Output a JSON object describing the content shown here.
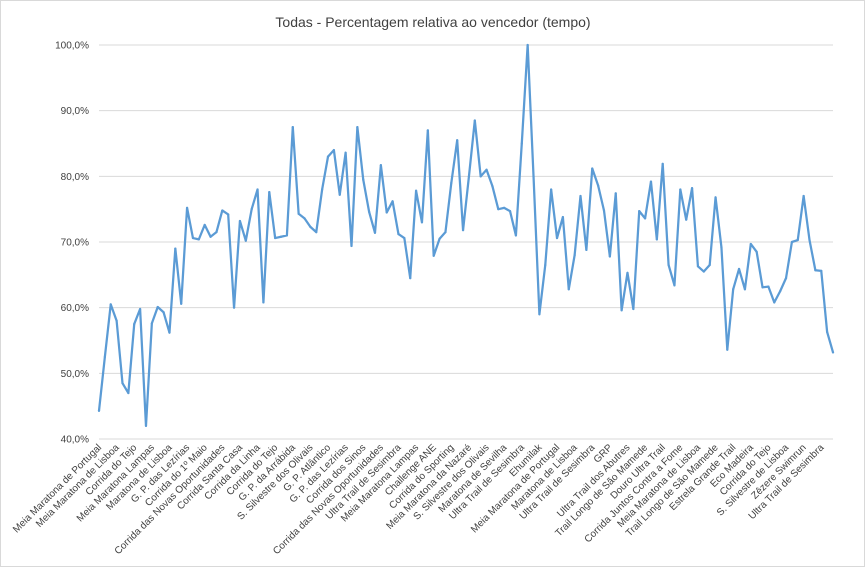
{
  "colors": {
    "series": "#5b9bd5",
    "grid": "#d9d9d9",
    "text": "#404040",
    "background": "#ffffff"
  },
  "chart_data": {
    "type": "line",
    "title": "Todas - Percentagem relativa ao vencedor (tempo)",
    "xlabel": "",
    "ylabel": "",
    "ylim": [
      40,
      100
    ],
    "yticks": [
      40,
      50,
      60,
      70,
      80,
      90,
      100
    ],
    "ytick_labels": [
      "40,0%",
      "50,0%",
      "60,0%",
      "70,0%",
      "80,0%",
      "90,0%",
      "100,0%"
    ],
    "grid": true,
    "legend": "none",
    "x_labels": [
      {
        "i": 0,
        "label": "Meia Maratona de Portugal"
      },
      {
        "i": 3,
        "label": "Meia Maratona de Lisboa"
      },
      {
        "i": 6,
        "label": "Corrida do Tejo"
      },
      {
        "i": 9,
        "label": "Meia Maratona Lampas"
      },
      {
        "i": 12,
        "label": "Maratona de Lisboa"
      },
      {
        "i": 15,
        "label": "G. P. das Lezírias"
      },
      {
        "i": 18,
        "label": "Corrida do 1º Maio"
      },
      {
        "i": 21,
        "label": "Corrida das Novas Oportunidades"
      },
      {
        "i": 24,
        "label": "Corrida Santa Casa"
      },
      {
        "i": 27,
        "label": "Corrida da Linha"
      },
      {
        "i": 30,
        "label": "Corrida do Tejo"
      },
      {
        "i": 33,
        "label": "G. P. da Arrábida"
      },
      {
        "i": 36,
        "label": "S. Silvestre dos Olivais"
      },
      {
        "i": 39,
        "label": "G. P. Atlântico"
      },
      {
        "i": 42,
        "label": "G. P. das Lezírias"
      },
      {
        "i": 45,
        "label": "Corrida dos Sinos"
      },
      {
        "i": 48,
        "label": "Corrida das Novas Oportunidades"
      },
      {
        "i": 51,
        "label": "Ultra Trail de Sesimbra"
      },
      {
        "i": 54,
        "label": "Meia Maratona Lampas"
      },
      {
        "i": 57,
        "label": "Challenge ANE"
      },
      {
        "i": 60,
        "label": "Corrida do Sporting"
      },
      {
        "i": 63,
        "label": "Meia Maratona da Nazaré"
      },
      {
        "i": 66,
        "label": "S. Silvestre dos Olivais"
      },
      {
        "i": 69,
        "label": "Maratona de Sevilha"
      },
      {
        "i": 72,
        "label": "Ultra Trail de Sesimbra"
      },
      {
        "i": 75,
        "label": "Ehumilak"
      },
      {
        "i": 78,
        "label": "Meia Maratona de Portugal"
      },
      {
        "i": 81,
        "label": "Maratona de Lisboa"
      },
      {
        "i": 84,
        "label": "Ultra Trail de Sesimbra"
      },
      {
        "i": 87,
        "label": "GRP"
      },
      {
        "i": 90,
        "label": "Ultra Trail dos Abutres"
      },
      {
        "i": 93,
        "label": "Trail Longo de São Mamede"
      },
      {
        "i": 96,
        "label": "Douro Ultra Trail"
      },
      {
        "i": 99,
        "label": "Corrida Juntos Contra a Fome"
      },
      {
        "i": 102,
        "label": "Meia Maratona de Lisboa"
      },
      {
        "i": 105,
        "label": "Trail Longo de São Mamede"
      },
      {
        "i": 108,
        "label": "Estrela Grande Trail"
      },
      {
        "i": 111,
        "label": "Eco Madeira"
      },
      {
        "i": 114,
        "label": "Corrida do Tejo"
      },
      {
        "i": 117,
        "label": "S. Silvestre de Lisboa"
      },
      {
        "i": 120,
        "label": "Zêzere Swimrun"
      },
      {
        "i": 123,
        "label": "Ultra Trail de Sesimbra"
      }
    ],
    "series": [
      {
        "name": "Percentagem relativa ao vencedor",
        "values": [
          44.3,
          52.5,
          60.5,
          58.0,
          48.5,
          47.0,
          57.5,
          59.8,
          42.0,
          57.6,
          60.1,
          59.3,
          56.2,
          69.0,
          60.6,
          75.2,
          70.6,
          70.4,
          72.6,
          70.8,
          71.5,
          74.8,
          74.2,
          60.0,
          73.2,
          70.2,
          75.0,
          78.0,
          60.8,
          77.6,
          70.6,
          70.8,
          71.0,
          87.5,
          74.3,
          73.6,
          72.3,
          71.5,
          78.0,
          83.0,
          84.0,
          77.2,
          83.6,
          69.4,
          87.5,
          79.5,
          74.6,
          71.4,
          81.7,
          74.5,
          76.2,
          71.2,
          70.6,
          64.5,
          77.8,
          73.0,
          87.0,
          67.9,
          70.5,
          71.5,
          79.0,
          85.5,
          71.8,
          80.0,
          88.5,
          80.0,
          81.0,
          78.5,
          75.0,
          75.2,
          74.7,
          71.0,
          85.0,
          100.0,
          80.0,
          59.0,
          66.5,
          78.0,
          70.6,
          73.8,
          62.8,
          68.0,
          77.0,
          68.8,
          81.2,
          78.6,
          74.8,
          67.8,
          77.4,
          59.6,
          65.3,
          59.8,
          74.7,
          73.6,
          79.2,
          70.4,
          81.9,
          66.5,
          63.4,
          78.0,
          73.4,
          78.2,
          66.3,
          65.5,
          66.5,
          76.8,
          69.2,
          53.6,
          62.8,
          65.9,
          62.8,
          69.7,
          68.5,
          63.1,
          63.2,
          60.8,
          62.5,
          64.5,
          70.0,
          70.3,
          77.0,
          70.3,
          65.7,
          65.6,
          56.3,
          53.2
        ]
      }
    ]
  }
}
